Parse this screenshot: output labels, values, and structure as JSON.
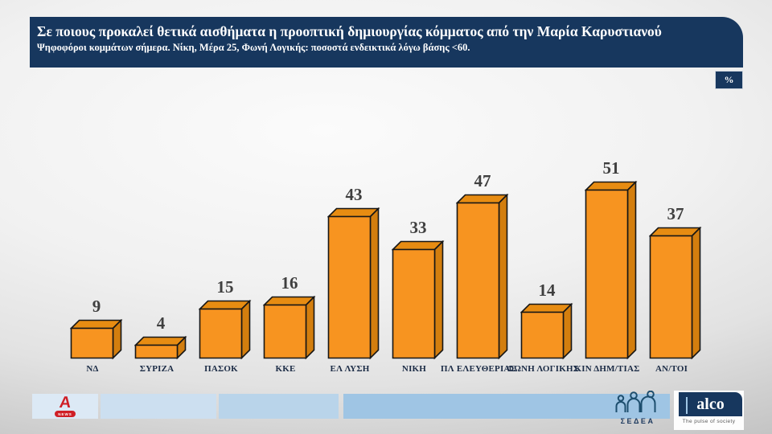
{
  "header": {
    "title": "Σε ποιους προκαλεί θετικά αισθήματα η προοπτική δημιουργίας κόμματος από την Μαρία Καρυστιανού",
    "subtitle": "Ψηφοφόροι κομμάτων σήμερα. Νίκη, Μέρα 25, Φωνή Λογικής: ποσοστά ενδεικτικά λόγω βάσης <60.",
    "unit_badge": "%"
  },
  "chart_data": {
    "type": "bar",
    "title": "Σε ποιους προκαλεί θετικά αισθήματα η προοπτική δημιουργίας κόμματος από την Μαρία Καρυστιανού",
    "categories": [
      "ΝΔ",
      "ΣΥΡΙΖΑ",
      "ΠΑΣΟΚ",
      "ΚΚΕ",
      "ΕΛ ΛΥΣΗ",
      "ΝΙΚΗ",
      "ΠΛ ΕΛΕΥΘΕΡΙΑΣ",
      "ΦΩΝΗ ΛΟΓΙΚΗΣ",
      "ΚΙΝ ΔΗΜ/ΤΙΑΣ",
      "ΑΝ/ΤΟΙ"
    ],
    "values": [
      9,
      4,
      15,
      16,
      43,
      33,
      47,
      14,
      51,
      37
    ],
    "unit": "%",
    "xlabel": "",
    "ylabel": "",
    "ylim": [
      0,
      55
    ],
    "grid": false,
    "legend": false,
    "data_labels": true,
    "style": "3d-bar",
    "bar_color_front": "#F79420",
    "bar_color_top": "#E78C12",
    "bar_color_side": "#D37E0E",
    "bar_outline": "#161616"
  },
  "footer": {
    "alpha": {
      "letter": "A",
      "badge": "NEWS"
    },
    "sedea": {
      "label": "ΣΕΔΕΑ"
    },
    "alco": {
      "name": "alco",
      "tagline": "The pulse of society"
    }
  },
  "colors": {
    "header_bg": "#17375E",
    "panel1": "#DCE9F5",
    "panel2": "#CCDFF0",
    "panel3": "#B9D4EA",
    "panel4": "#9FC5E4",
    "alpha_red": "#CF1F26"
  }
}
